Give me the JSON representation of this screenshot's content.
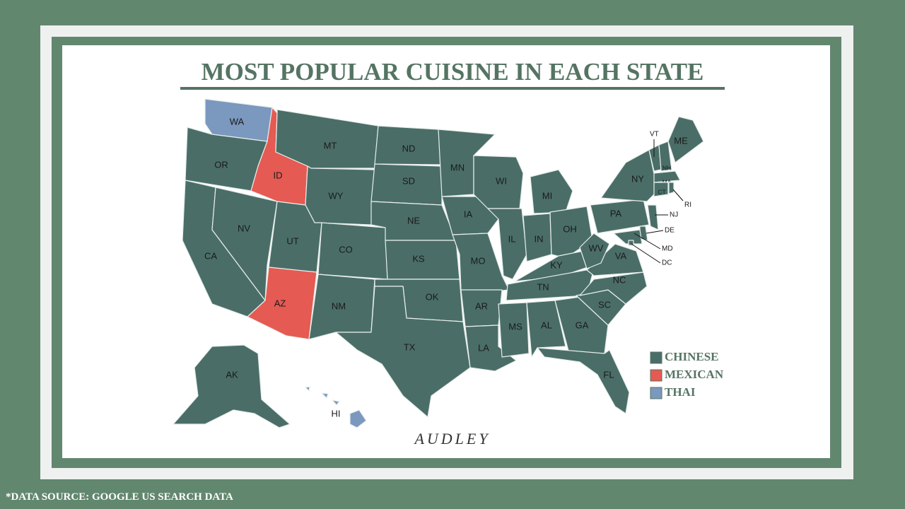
{
  "title": "MOST POPULAR CUISINE IN EACH STATE",
  "states": [
    {
      "abbr": "WA",
      "cuisine": "THAI"
    },
    {
      "abbr": "OR",
      "cuisine": "CHINESE"
    },
    {
      "abbr": "CA",
      "cuisine": "CHINESE"
    },
    {
      "abbr": "NV",
      "cuisine": "CHINESE"
    },
    {
      "abbr": "ID",
      "cuisine": "MEXICAN"
    },
    {
      "abbr": "MT",
      "cuisine": "CHINESE"
    },
    {
      "abbr": "WY",
      "cuisine": "CHINESE"
    },
    {
      "abbr": "UT",
      "cuisine": "CHINESE"
    },
    {
      "abbr": "AZ",
      "cuisine": "MEXICAN"
    },
    {
      "abbr": "CO",
      "cuisine": "CHINESE"
    },
    {
      "abbr": "NM",
      "cuisine": "CHINESE"
    },
    {
      "abbr": "ND",
      "cuisine": "CHINESE"
    },
    {
      "abbr": "SD",
      "cuisine": "CHINESE"
    },
    {
      "abbr": "NE",
      "cuisine": "CHINESE"
    },
    {
      "abbr": "KS",
      "cuisine": "CHINESE"
    },
    {
      "abbr": "OK",
      "cuisine": "CHINESE"
    },
    {
      "abbr": "TX",
      "cuisine": "CHINESE"
    },
    {
      "abbr": "MN",
      "cuisine": "CHINESE"
    },
    {
      "abbr": "IA",
      "cuisine": "CHINESE"
    },
    {
      "abbr": "MO",
      "cuisine": "CHINESE"
    },
    {
      "abbr": "AR",
      "cuisine": "CHINESE"
    },
    {
      "abbr": "LA",
      "cuisine": "CHINESE"
    },
    {
      "abbr": "WI",
      "cuisine": "CHINESE"
    },
    {
      "abbr": "IL",
      "cuisine": "CHINESE"
    },
    {
      "abbr": "MI",
      "cuisine": "CHINESE"
    },
    {
      "abbr": "IN",
      "cuisine": "CHINESE"
    },
    {
      "abbr": "OH",
      "cuisine": "CHINESE"
    },
    {
      "abbr": "KY",
      "cuisine": "CHINESE"
    },
    {
      "abbr": "TN",
      "cuisine": "CHINESE"
    },
    {
      "abbr": "MS",
      "cuisine": "CHINESE"
    },
    {
      "abbr": "AL",
      "cuisine": "CHINESE"
    },
    {
      "abbr": "GA",
      "cuisine": "CHINESE"
    },
    {
      "abbr": "FL",
      "cuisine": "CHINESE"
    },
    {
      "abbr": "SC",
      "cuisine": "CHINESE"
    },
    {
      "abbr": "NC",
      "cuisine": "CHINESE"
    },
    {
      "abbr": "VA",
      "cuisine": "CHINESE"
    },
    {
      "abbr": "WV",
      "cuisine": "CHINESE"
    },
    {
      "abbr": "PA",
      "cuisine": "CHINESE"
    },
    {
      "abbr": "NY",
      "cuisine": "CHINESE"
    },
    {
      "abbr": "VT",
      "cuisine": "CHINESE"
    },
    {
      "abbr": "NH",
      "cuisine": "CHINESE"
    },
    {
      "abbr": "ME",
      "cuisine": "CHINESE"
    },
    {
      "abbr": "MA",
      "cuisine": "CHINESE"
    },
    {
      "abbr": "CT",
      "cuisine": "CHINESE"
    },
    {
      "abbr": "RI",
      "cuisine": "CHINESE"
    },
    {
      "abbr": "NJ",
      "cuisine": "CHINESE"
    },
    {
      "abbr": "DE",
      "cuisine": "CHINESE"
    },
    {
      "abbr": "MD",
      "cuisine": "CHINESE"
    },
    {
      "abbr": "DC",
      "cuisine": "CHINESE"
    },
    {
      "abbr": "AK",
      "cuisine": "CHINESE"
    },
    {
      "abbr": "HI",
      "cuisine": "THAI"
    }
  ],
  "legend": [
    {
      "label": "CHINESE",
      "color": "#4a6e67"
    },
    {
      "label": "MEXICAN",
      "color": "#e55a52"
    },
    {
      "label": "THAI",
      "color": "#7b98be"
    }
  ],
  "logo": "AUDLEY",
  "source": "*DATA SOURCE: GOOGLE US SEARCH DATA"
}
